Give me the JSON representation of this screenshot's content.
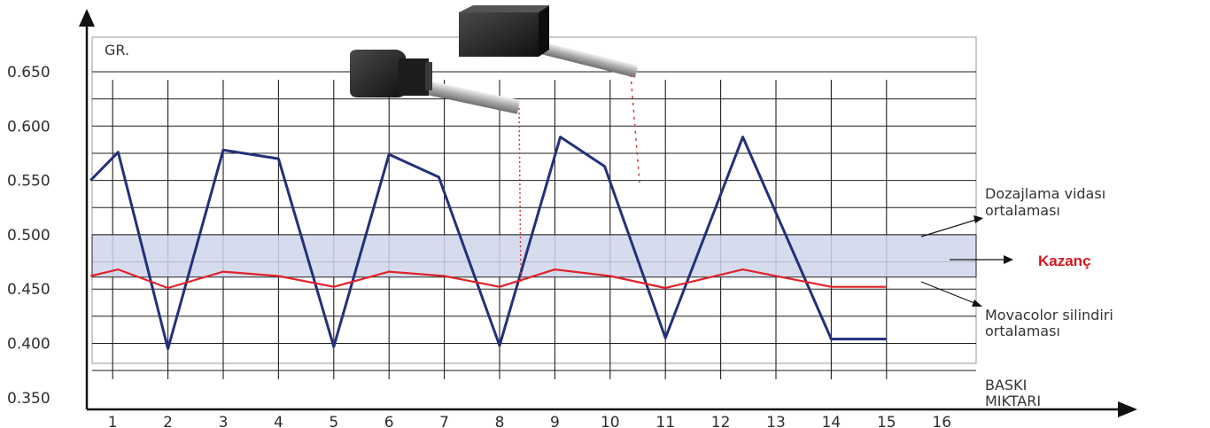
{
  "chart_data": {
    "type": "line",
    "ylabel": "GR.",
    "xlabel_lines": [
      "BASKI",
      "MIKTARI"
    ],
    "ylim": [
      0.35,
      0.66
    ],
    "xlim": [
      0.5,
      16
    ],
    "y_ticks": [
      "0.650",
      "0.600",
      "0.550",
      "0.500",
      "0.450",
      "0.400",
      "0.350"
    ],
    "y_tick_values": [
      0.65,
      0.6,
      0.55,
      0.5,
      0.45,
      0.4,
      0.35
    ],
    "x_ticks": [
      "1",
      "2",
      "3",
      "4",
      "5",
      "6",
      "7",
      "8",
      "9",
      "10",
      "11",
      "12",
      "13",
      "14",
      "15",
      "16"
    ],
    "x_tick_values": [
      1,
      2,
      3,
      4,
      5,
      6,
      7,
      8,
      9,
      10,
      11,
      12,
      13,
      14,
      15,
      16
    ],
    "grid": true,
    "series": [
      {
        "name": "",
        "color": "#24307a",
        "points": [
          [
            0.6,
            0.55
          ],
          [
            1.1,
            0.576
          ],
          [
            2,
            0.395
          ],
          [
            3,
            0.578
          ],
          [
            4,
            0.57
          ],
          [
            5,
            0.397
          ],
          [
            6,
            0.574
          ],
          [
            6.9,
            0.553
          ],
          [
            8,
            0.398
          ],
          [
            9.1,
            0.59
          ],
          [
            9.9,
            0.563
          ],
          [
            11,
            0.405
          ],
          [
            12.4,
            0.59
          ],
          [
            14,
            0.404
          ],
          [
            15,
            0.404
          ]
        ]
      },
      {
        "name": "",
        "color": "#e0222a",
        "points": [
          [
            0.6,
            0.462
          ],
          [
            1.1,
            0.468
          ],
          [
            2,
            0.451
          ],
          [
            3,
            0.466
          ],
          [
            4,
            0.462
          ],
          [
            5,
            0.452
          ],
          [
            6,
            0.466
          ],
          [
            7,
            0.462
          ],
          [
            8,
            0.452
          ],
          [
            9,
            0.468
          ],
          [
            10,
            0.462
          ],
          [
            11,
            0.451
          ],
          [
            12.4,
            0.468
          ],
          [
            14,
            0.452
          ],
          [
            15,
            0.452
          ]
        ]
      }
    ],
    "band": {
      "from": 0.461,
      "to": 0.5,
      "color": "#cfd6ea"
    },
    "annotations": {
      "dosing_lines": [
        "Dozajlama vidası",
        "ortalaması"
      ],
      "gain": "Kazanç",
      "cylinder_lines": [
        "Movacolor silindiri",
        "ortalaması"
      ]
    }
  }
}
